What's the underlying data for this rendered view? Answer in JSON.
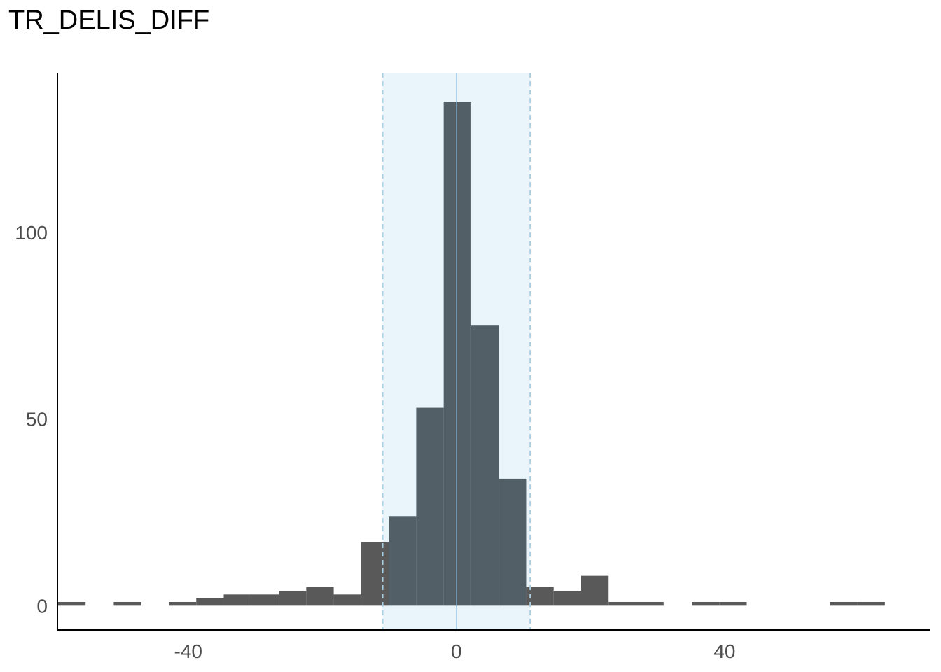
{
  "chart_data": {
    "type": "bar",
    "title": "TR_DELIS_DIFF",
    "xlabel": "",
    "ylabel": "",
    "xlim": [
      -59.5,
      70.6
    ],
    "ylim": [
      -6.5,
      142.7
    ],
    "x_ticks": [
      {
        "value": -40,
        "label": "-40"
      },
      {
        "value": 0,
        "label": "0"
      },
      {
        "value": 40,
        "label": "40"
      }
    ],
    "y_ticks": [
      {
        "value": 0,
        "label": "0"
      },
      {
        "value": 50,
        "label": "50"
      },
      {
        "value": 100,
        "label": "100"
      }
    ],
    "bin_width": 4.1,
    "bins": [
      {
        "x0": -59.4,
        "x1": -55.3,
        "count": 1
      },
      {
        "x0": -51.1,
        "x1": -47.0,
        "count": 1
      },
      {
        "x0": -42.9,
        "x1": -38.8,
        "count": 1
      },
      {
        "x0": -38.8,
        "x1": -34.7,
        "count": 2
      },
      {
        "x0": -34.7,
        "x1": -30.6,
        "count": 3
      },
      {
        "x0": -30.6,
        "x1": -26.5,
        "count": 3
      },
      {
        "x0": -26.5,
        "x1": -22.4,
        "count": 4
      },
      {
        "x0": -22.4,
        "x1": -18.3,
        "count": 5
      },
      {
        "x0": -18.3,
        "x1": -14.2,
        "count": 3
      },
      {
        "x0": -14.2,
        "x1": -10.1,
        "count": 17
      },
      {
        "x0": -10.1,
        "x1": -6.0,
        "count": 24
      },
      {
        "x0": -6.0,
        "x1": -1.9,
        "count": 53
      },
      {
        "x0": -1.9,
        "x1": 2.2,
        "count": 135
      },
      {
        "x0": 2.2,
        "x1": 6.3,
        "count": 75
      },
      {
        "x0": 6.3,
        "x1": 10.4,
        "count": 34
      },
      {
        "x0": 10.4,
        "x1": 14.5,
        "count": 5
      },
      {
        "x0": 14.5,
        "x1": 18.6,
        "count": 4
      },
      {
        "x0": 18.6,
        "x1": 22.7,
        "count": 8
      },
      {
        "x0": 22.7,
        "x1": 26.8,
        "count": 1
      },
      {
        "x0": 26.8,
        "x1": 30.9,
        "count": 1
      },
      {
        "x0": 35.1,
        "x1": 39.2,
        "count": 1
      },
      {
        "x0": 39.2,
        "x1": 43.3,
        "count": 1
      },
      {
        "x0": 55.7,
        "x1": 59.8,
        "count": 1
      },
      {
        "x0": 59.8,
        "x1": 63.9,
        "count": 1
      }
    ],
    "reference_band": {
      "x_min": -11,
      "x_max": 11,
      "center": 0
    },
    "grid": false,
    "legend": "none",
    "colors": {
      "bar": "#595959",
      "bar_in_band": "#525f66",
      "band_fill": "#eaf4fb",
      "band_lines": "#a9cfe3",
      "center_line": "#8ab9d8",
      "axis": "#000000",
      "tick_text": "#4d4d4d"
    }
  }
}
